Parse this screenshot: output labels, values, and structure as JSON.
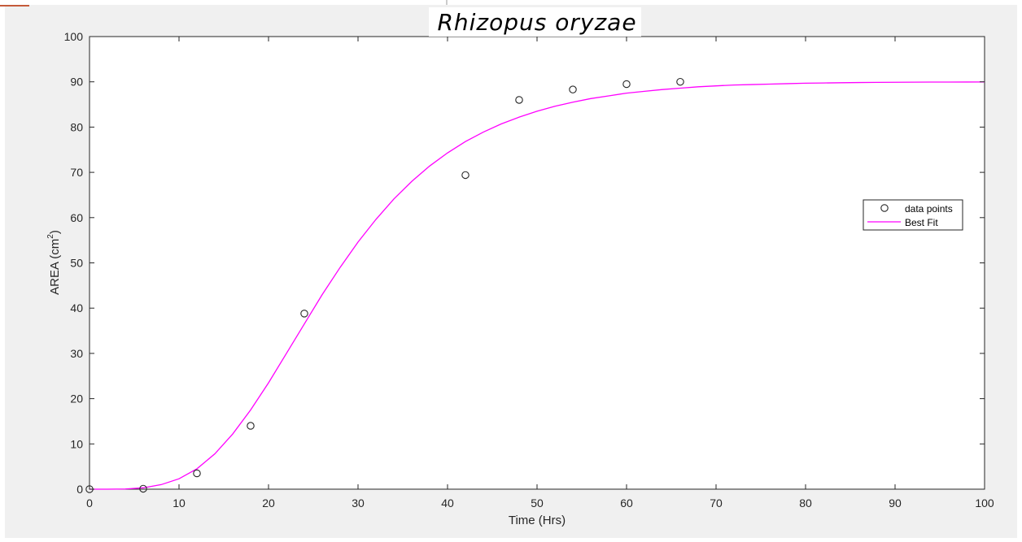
{
  "chart_data": {
    "type": "scatter",
    "title": "Rhizopus oryzae",
    "xlabel": "Time (Hrs)",
    "ylabel_main": "AREA (cm",
    "ylabel_sup": "2",
    "ylabel_close": ")",
    "xlim": [
      0,
      100
    ],
    "ylim": [
      0,
      100
    ],
    "xticks": [
      "0",
      "10",
      "20",
      "30",
      "40",
      "50",
      "60",
      "70",
      "80",
      "90",
      "100"
    ],
    "yticks": [
      "0",
      "10",
      "20",
      "30",
      "40",
      "50",
      "60",
      "70",
      "80",
      "90",
      "100"
    ],
    "grid": false,
    "legend_position": "right",
    "series": [
      {
        "name": "data points",
        "kind": "markers",
        "marker": "open-circle",
        "x": [
          0,
          6,
          12,
          18,
          24,
          42,
          48,
          54,
          60,
          66
        ],
        "y": [
          0,
          0.1,
          3.5,
          14,
          38.8,
          69.4,
          86,
          88.3,
          89.5,
          90
        ]
      },
      {
        "name": "Best Fit",
        "kind": "line",
        "color": "#ff00ff",
        "x": [
          0,
          2,
          4,
          6,
          8,
          10,
          12,
          14,
          16,
          18,
          20,
          22,
          24,
          26,
          28,
          30,
          32,
          34,
          36,
          38,
          40,
          42,
          44,
          46,
          48,
          50,
          52,
          54,
          56,
          58,
          60,
          62,
          64,
          66,
          68,
          70,
          72,
          74,
          76,
          78,
          80,
          82,
          84,
          86,
          88,
          90,
          92,
          94,
          96,
          98,
          100
        ],
        "y": [
          0,
          0,
          0.05,
          0.3,
          1.0,
          2.3,
          4.5,
          7.8,
          12.2,
          17.5,
          23.5,
          30.0,
          36.5,
          43.0,
          49.0,
          54.6,
          59.6,
          64.1,
          68.0,
          71.4,
          74.3,
          76.8,
          78.9,
          80.7,
          82.2,
          83.5,
          84.6,
          85.5,
          86.3,
          86.9,
          87.5,
          87.9,
          88.3,
          88.6,
          88.9,
          89.1,
          89.3,
          89.4,
          89.5,
          89.6,
          89.7,
          89.75,
          89.8,
          89.85,
          89.88,
          89.9,
          89.92,
          89.94,
          89.95,
          89.96,
          89.97
        ]
      }
    ]
  }
}
